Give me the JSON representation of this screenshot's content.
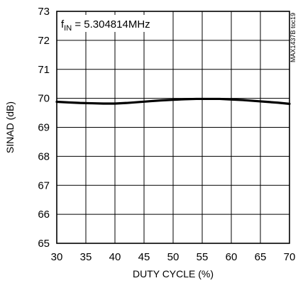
{
  "chart_data": {
    "type": "line",
    "title": "",
    "xlabel": "DUTY CYCLE (%)",
    "ylabel": "SINAD (dB)",
    "xlim": [
      30,
      70
    ],
    "ylim": [
      65,
      73
    ],
    "xticks": [
      30,
      35,
      40,
      45,
      50,
      55,
      60,
      65,
      70
    ],
    "yticks": [
      65,
      66,
      67,
      68,
      69,
      70,
      71,
      72,
      73
    ],
    "grid": true,
    "annotation": {
      "prefix": "f",
      "subscript": "IN",
      "value": " = 5.304814MHz"
    },
    "side_label": "MAX1437B toc19",
    "series": [
      {
        "line_color": "#000000",
        "x": [
          30,
          32,
          34,
          36,
          38,
          40,
          42,
          44,
          46,
          48,
          50,
          52,
          54,
          56,
          58,
          60,
          62,
          64,
          66,
          68,
          70
        ],
        "y": [
          69.88,
          69.86,
          69.84,
          69.83,
          69.82,
          69.82,
          69.84,
          69.87,
          69.9,
          69.93,
          69.95,
          69.97,
          69.98,
          69.98,
          69.98,
          69.96,
          69.94,
          69.91,
          69.88,
          69.85,
          69.81
        ]
      }
    ]
  }
}
